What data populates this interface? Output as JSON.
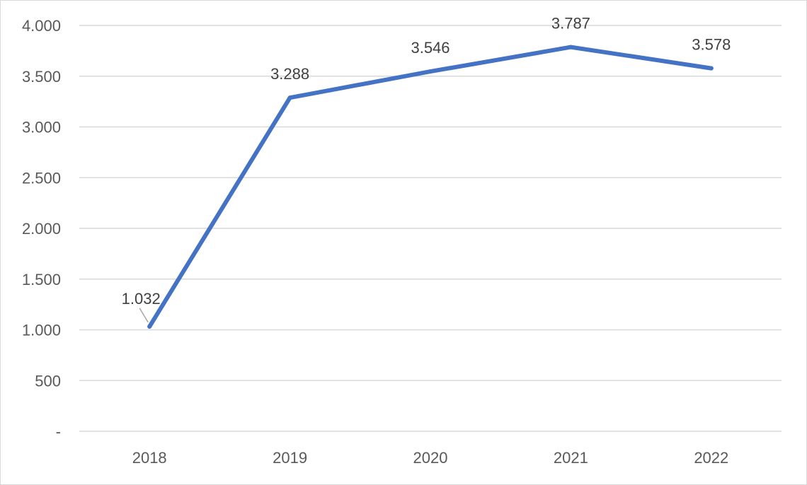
{
  "chart_data": {
    "type": "line",
    "categories": [
      "2018",
      "2019",
      "2020",
      "2021",
      "2022"
    ],
    "series": [
      {
        "values": [
          1032,
          3288,
          3546,
          3787,
          3578
        ],
        "value_labels": [
          "1.032",
          "3.288",
          "3.546",
          "3.787",
          "3.578"
        ],
        "color": "#4472c4"
      }
    ],
    "ylim": [
      0,
      4000
    ],
    "yticks": [
      {
        "value": 0,
        "label": "-"
      },
      {
        "value": 500,
        "label": "500"
      },
      {
        "value": 1000,
        "label": "1.000"
      },
      {
        "value": 1500,
        "label": "1.500"
      },
      {
        "value": 2000,
        "label": "2.000"
      },
      {
        "value": 2500,
        "label": "2.500"
      },
      {
        "value": 3000,
        "label": "3.000"
      },
      {
        "value": 3500,
        "label": "3.500"
      },
      {
        "value": 4000,
        "label": "4.000"
      }
    ],
    "grid": true,
    "legend": "none",
    "gridline_color": "#d9d9d9",
    "axis_color": "#d9d9d9"
  }
}
